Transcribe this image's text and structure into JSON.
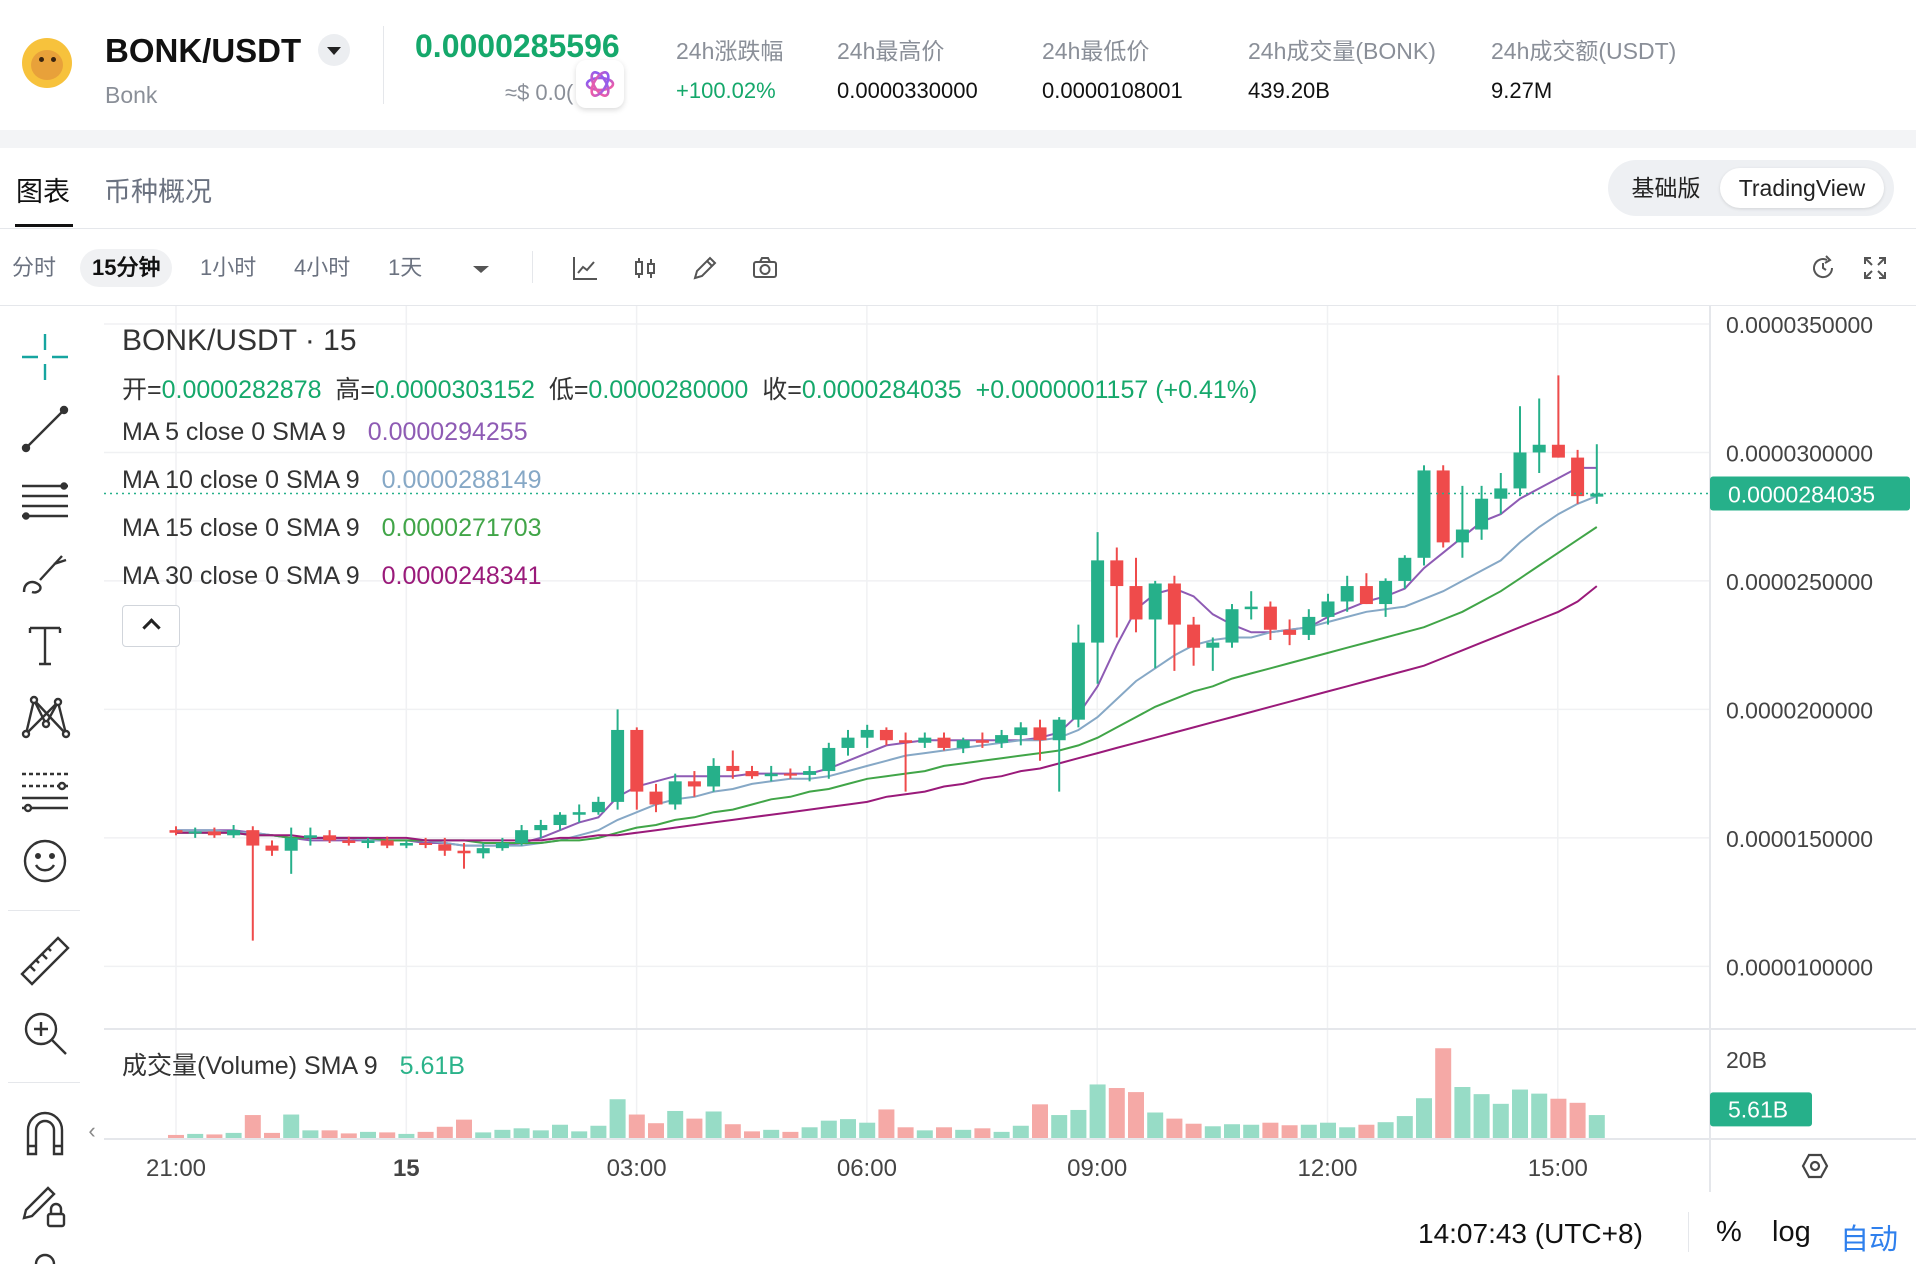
{
  "header": {
    "pair": "BONK/USDT",
    "pair_name": "Bonk",
    "last_price": "0.0000285596",
    "price_usd": "≈$ 0.0(",
    "stats": [
      {
        "label": "24h涨跌幅",
        "value": "+100.02%",
        "positive": true
      },
      {
        "label": "24h最高价",
        "value": "0.0000330000"
      },
      {
        "label": "24h最低价",
        "value": "0.0000108001"
      },
      {
        "label": "24h成交量(BONK)",
        "value": "439.20B"
      },
      {
        "label": "24h成交额(USDT)",
        "value": "9.27M"
      }
    ]
  },
  "tabs": {
    "chart": "图表",
    "overview": "币种概况",
    "mode_basic": "基础版",
    "mode_tv": "TradingView"
  },
  "toolbar": {
    "timeframes": [
      "分时",
      "15分钟",
      "1小时",
      "4小时",
      "1天"
    ],
    "selected": "15分钟"
  },
  "legend": {
    "title": "BONK/USDT · 15",
    "open_label": "开=",
    "open": "0.0000282878",
    "high_label": "高=",
    "high": "0.0000303152",
    "low_label": "低=",
    "low": "0.0000280000",
    "close_label": "收=",
    "close": "0.0000284035",
    "change": "+0.0000001157 (+0.41%)",
    "ma": [
      {
        "label": "MA 5 close 0 SMA 9",
        "value": "0.0000294255",
        "color": "#8e5bb4"
      },
      {
        "label": "MA 10 close 0 SMA 9",
        "value": "0.0000288149",
        "color": "#86a8c6"
      },
      {
        "label": "MA 15 close 0 SMA 9",
        "value": "0.0000271703",
        "color": "#41a548"
      },
      {
        "label": "MA 30 close 0 SMA 9",
        "value": "0.0000248341",
        "color": "#9a1a7a"
      }
    ],
    "volume_label": "成交量(Volume) SMA 9",
    "volume_value": "5.61B"
  },
  "footer": {
    "clock": "14:07:43 (UTC+8)",
    "percent": "%",
    "log": "log",
    "auto": "自动"
  },
  "colors": {
    "up": "#26b08a",
    "down": "#ef4b4b",
    "up_vol": "#97dcc6",
    "down_vol": "#f5a9a6",
    "accent": "#15a86b"
  },
  "chart_data": {
    "type": "candlestick",
    "y_axis_ticks": [
      "0.0000350000",
      "0.0000300000",
      "0.0000250000",
      "0.0000200000",
      "0.0000150000",
      "0.0000100000"
    ],
    "ylim": [
      7.6e-06,
      3.57e-05
    ],
    "x_ticks": [
      "21:00",
      "15",
      "03:00",
      "06:00",
      "09:00",
      "12:00",
      "15:00"
    ],
    "last_price_label": "0.0000284035",
    "last_price": 2.84035e-05,
    "volume_ticks": [
      "20B"
    ],
    "volume_sma_label": "5.61B",
    "volume_sma": 5.61,
    "volume_max": 20,
    "candles": [
      {
        "o": 15.3,
        "h": 15.45,
        "l": 15.1,
        "c": 15.2,
        "v": 0.6
      },
      {
        "o": 15.2,
        "h": 15.4,
        "l": 15.0,
        "c": 15.25,
        "v": 0.8
      },
      {
        "o": 15.25,
        "h": 15.4,
        "l": 15.0,
        "c": 15.1,
        "v": 0.7
      },
      {
        "o": 15.1,
        "h": 15.5,
        "l": 15.0,
        "c": 15.3,
        "v": 1.0
      },
      {
        "o": 15.3,
        "h": 15.45,
        "l": 11.0,
        "c": 14.7,
        "v": 4.5
      },
      {
        "o": 14.7,
        "h": 14.9,
        "l": 14.3,
        "c": 14.5,
        "v": 1.0
      },
      {
        "o": 14.5,
        "h": 15.4,
        "l": 13.6,
        "c": 15.0,
        "v": 4.6
      },
      {
        "o": 15.0,
        "h": 15.4,
        "l": 14.7,
        "c": 15.1,
        "v": 1.5
      },
      {
        "o": 15.1,
        "h": 15.3,
        "l": 14.8,
        "c": 14.9,
        "v": 1.5
      },
      {
        "o": 14.9,
        "h": 15.05,
        "l": 14.7,
        "c": 14.8,
        "v": 0.9
      },
      {
        "o": 14.8,
        "h": 15.0,
        "l": 14.6,
        "c": 14.9,
        "v": 1.2
      },
      {
        "o": 14.9,
        "h": 15.05,
        "l": 14.6,
        "c": 14.7,
        "v": 1.1
      },
      {
        "o": 14.7,
        "h": 14.9,
        "l": 14.6,
        "c": 14.8,
        "v": 0.8
      },
      {
        "o": 14.8,
        "h": 15.0,
        "l": 14.6,
        "c": 14.75,
        "v": 1.2
      },
      {
        "o": 14.75,
        "h": 15.0,
        "l": 14.3,
        "c": 14.5,
        "v": 2.2
      },
      {
        "o": 14.5,
        "h": 14.8,
        "l": 13.8,
        "c": 14.4,
        "v": 3.6
      },
      {
        "o": 14.4,
        "h": 14.8,
        "l": 14.2,
        "c": 14.6,
        "v": 1.1
      },
      {
        "o": 14.6,
        "h": 15.0,
        "l": 14.5,
        "c": 14.8,
        "v": 1.6
      },
      {
        "o": 14.8,
        "h": 15.5,
        "l": 14.7,
        "c": 15.3,
        "v": 1.9
      },
      {
        "o": 15.3,
        "h": 15.7,
        "l": 15.0,
        "c": 15.5,
        "v": 1.5
      },
      {
        "o": 15.5,
        "h": 16.0,
        "l": 15.3,
        "c": 15.9,
        "v": 2.6
      },
      {
        "o": 15.9,
        "h": 16.3,
        "l": 15.6,
        "c": 16.0,
        "v": 1.3
      },
      {
        "o": 16.0,
        "h": 16.6,
        "l": 15.9,
        "c": 16.4,
        "v": 2.4
      },
      {
        "o": 16.4,
        "h": 20.0,
        "l": 16.1,
        "c": 19.2,
        "v": 7.6
      },
      {
        "o": 19.2,
        "h": 19.3,
        "l": 16.1,
        "c": 16.8,
        "v": 4.6
      },
      {
        "o": 16.8,
        "h": 17.1,
        "l": 16.0,
        "c": 16.3,
        "v": 2.9
      },
      {
        "o": 16.3,
        "h": 17.5,
        "l": 16.1,
        "c": 17.2,
        "v": 5.3
      },
      {
        "o": 17.2,
        "h": 17.6,
        "l": 16.6,
        "c": 17.0,
        "v": 3.8
      },
      {
        "o": 17.0,
        "h": 18.1,
        "l": 16.8,
        "c": 17.8,
        "v": 5.2
      },
      {
        "o": 17.8,
        "h": 18.4,
        "l": 17.3,
        "c": 17.6,
        "v": 2.7
      },
      {
        "o": 17.6,
        "h": 17.8,
        "l": 17.3,
        "c": 17.4,
        "v": 1.3
      },
      {
        "o": 17.4,
        "h": 17.8,
        "l": 17.2,
        "c": 17.5,
        "v": 1.6
      },
      {
        "o": 17.5,
        "h": 17.7,
        "l": 17.3,
        "c": 17.45,
        "v": 1.2
      },
      {
        "o": 17.45,
        "h": 17.8,
        "l": 17.2,
        "c": 17.6,
        "v": 2.1
      },
      {
        "o": 17.6,
        "h": 18.7,
        "l": 17.3,
        "c": 18.5,
        "v": 3.4
      },
      {
        "o": 18.5,
        "h": 19.2,
        "l": 18.2,
        "c": 18.9,
        "v": 3.7
      },
      {
        "o": 18.9,
        "h": 19.4,
        "l": 18.5,
        "c": 19.2,
        "v": 3.0
      },
      {
        "o": 19.2,
        "h": 19.3,
        "l": 18.6,
        "c": 18.8,
        "v": 5.6
      },
      {
        "o": 18.8,
        "h": 19.1,
        "l": 16.8,
        "c": 18.7,
        "v": 2.1
      },
      {
        "o": 18.7,
        "h": 19.1,
        "l": 18.5,
        "c": 18.9,
        "v": 1.5
      },
      {
        "o": 18.9,
        "h": 19.1,
        "l": 18.4,
        "c": 18.5,
        "v": 2.1
      },
      {
        "o": 18.5,
        "h": 18.9,
        "l": 18.3,
        "c": 18.8,
        "v": 1.6
      },
      {
        "o": 18.8,
        "h": 19.1,
        "l": 18.5,
        "c": 18.7,
        "v": 1.9
      },
      {
        "o": 18.7,
        "h": 19.2,
        "l": 18.5,
        "c": 19.0,
        "v": 1.2
      },
      {
        "o": 19.0,
        "h": 19.5,
        "l": 18.6,
        "c": 19.3,
        "v": 2.4
      },
      {
        "o": 19.3,
        "h": 19.6,
        "l": 18.0,
        "c": 18.8,
        "v": 6.6
      },
      {
        "o": 18.8,
        "h": 19.7,
        "l": 16.8,
        "c": 19.6,
        "v": 4.5
      },
      {
        "o": 19.6,
        "h": 23.3,
        "l": 19.3,
        "c": 22.6,
        "v": 5.5
      },
      {
        "o": 22.6,
        "h": 26.9,
        "l": 21.0,
        "c": 25.8,
        "v": 10.5
      },
      {
        "o": 25.8,
        "h": 26.3,
        "l": 22.8,
        "c": 24.8,
        "v": 9.8
      },
      {
        "o": 24.8,
        "h": 25.9,
        "l": 23.0,
        "c": 23.5,
        "v": 9.0
      },
      {
        "o": 23.5,
        "h": 25.0,
        "l": 21.6,
        "c": 24.9,
        "v": 5.0
      },
      {
        "o": 24.9,
        "h": 25.2,
        "l": 21.5,
        "c": 23.3,
        "v": 3.8
      },
      {
        "o": 23.3,
        "h": 23.6,
        "l": 21.7,
        "c": 22.4,
        "v": 2.8
      },
      {
        "o": 22.4,
        "h": 22.8,
        "l": 21.5,
        "c": 22.6,
        "v": 2.3
      },
      {
        "o": 22.6,
        "h": 24.1,
        "l": 22.4,
        "c": 23.9,
        "v": 2.7
      },
      {
        "o": 23.9,
        "h": 24.6,
        "l": 23.5,
        "c": 24.0,
        "v": 2.6
      },
      {
        "o": 24.0,
        "h": 24.2,
        "l": 22.7,
        "c": 23.1,
        "v": 3.0
      },
      {
        "o": 23.1,
        "h": 23.5,
        "l": 22.5,
        "c": 22.9,
        "v": 2.5
      },
      {
        "o": 22.9,
        "h": 23.9,
        "l": 22.7,
        "c": 23.6,
        "v": 2.6
      },
      {
        "o": 23.6,
        "h": 24.5,
        "l": 23.3,
        "c": 24.2,
        "v": 3.0
      },
      {
        "o": 24.2,
        "h": 25.2,
        "l": 23.8,
        "c": 24.8,
        "v": 2.1
      },
      {
        "o": 24.8,
        "h": 25.3,
        "l": 24.1,
        "c": 24.1,
        "v": 2.6
      },
      {
        "o": 24.1,
        "h": 25.1,
        "l": 23.6,
        "c": 25.0,
        "v": 3.1
      },
      {
        "o": 25.0,
        "h": 26.0,
        "l": 24.7,
        "c": 25.9,
        "v": 4.3
      },
      {
        "o": 25.9,
        "h": 29.5,
        "l": 25.6,
        "c": 29.3,
        "v": 7.8
      },
      {
        "o": 29.3,
        "h": 29.5,
        "l": 26.3,
        "c": 26.5,
        "v": 17.6
      },
      {
        "o": 26.5,
        "h": 28.7,
        "l": 25.9,
        "c": 27.0,
        "v": 10.0
      },
      {
        "o": 27.0,
        "h": 28.7,
        "l": 26.6,
        "c": 28.2,
        "v": 8.6
      },
      {
        "o": 28.2,
        "h": 29.2,
        "l": 27.6,
        "c": 28.6,
        "v": 6.7
      },
      {
        "o": 28.6,
        "h": 31.8,
        "l": 28.3,
        "c": 30.0,
        "v": 9.5
      },
      {
        "o": 30.0,
        "h": 32.1,
        "l": 29.2,
        "c": 30.3,
        "v": 8.7
      },
      {
        "o": 30.3,
        "h": 33.0,
        "l": 29.8,
        "c": 29.8,
        "v": 7.7
      },
      {
        "o": 29.8,
        "h": 30.1,
        "l": 28.0,
        "c": 28.3,
        "v": 6.9
      },
      {
        "o": 28.28,
        "h": 30.32,
        "l": 28.0,
        "c": 28.4,
        "v": 4.5
      }
    ],
    "ma_lines": [
      {
        "name": "MA 5",
        "color": "#8e5bb4",
        "values": [
          15.3,
          15.3,
          15.3,
          15.3,
          15.2,
          15.1,
          15.0,
          14.9,
          14.9,
          14.9,
          14.9,
          14.9,
          14.9,
          14.8,
          14.8,
          14.7,
          14.7,
          14.7,
          14.8,
          15.0,
          15.3,
          15.6,
          15.8,
          16.6,
          17.0,
          17.2,
          17.4,
          17.4,
          17.4,
          17.4,
          17.5,
          17.5,
          17.5,
          17.5,
          17.7,
          18.0,
          18.3,
          18.6,
          18.7,
          18.8,
          18.8,
          18.8,
          18.8,
          18.8,
          18.8,
          18.9,
          19.1,
          19.8,
          20.9,
          22.5,
          23.9,
          24.5,
          24.7,
          24.4,
          23.7,
          23.3,
          23.0,
          23.0,
          23.1,
          23.2,
          23.6,
          23.9,
          24.2,
          24.4,
          24.7,
          25.5,
          26.1,
          26.7,
          27.3,
          27.6,
          28.2,
          28.6,
          29.0,
          29.4,
          29.4
        ]
      },
      {
        "name": "MA 10",
        "color": "#86a8c6",
        "values": [
          15.3,
          15.3,
          15.3,
          15.2,
          15.2,
          15.1,
          15.0,
          15.0,
          15.0,
          15.0,
          14.9,
          14.9,
          14.9,
          14.9,
          14.8,
          14.7,
          14.7,
          14.7,
          14.7,
          14.8,
          14.9,
          15.1,
          15.3,
          15.7,
          16.0,
          16.3,
          16.5,
          16.6,
          16.8,
          16.9,
          17.1,
          17.2,
          17.3,
          17.3,
          17.4,
          17.6,
          17.8,
          18.0,
          18.2,
          18.3,
          18.4,
          18.5,
          18.6,
          18.7,
          18.8,
          18.8,
          18.9,
          19.2,
          19.7,
          20.4,
          21.1,
          21.6,
          22.1,
          22.5,
          22.7,
          22.8,
          22.8,
          23.0,
          23.1,
          23.2,
          23.4,
          23.6,
          23.8,
          23.9,
          24.0,
          24.3,
          24.6,
          25.0,
          25.4,
          25.8,
          26.5,
          27.1,
          27.6,
          28.0,
          28.3
        ]
      },
      {
        "name": "MA 15",
        "color": "#41a548",
        "values": [
          15.2,
          15.2,
          15.2,
          15.2,
          15.1,
          15.1,
          15.0,
          15.0,
          15.0,
          15.0,
          15.0,
          14.9,
          14.9,
          14.9,
          14.9,
          14.9,
          14.8,
          14.8,
          14.8,
          14.8,
          14.9,
          14.9,
          15.0,
          15.2,
          15.4,
          15.5,
          15.7,
          15.8,
          16.0,
          16.1,
          16.3,
          16.5,
          16.6,
          16.8,
          16.9,
          17.1,
          17.3,
          17.4,
          17.5,
          17.6,
          17.8,
          17.9,
          18.0,
          18.1,
          18.2,
          18.3,
          18.4,
          18.6,
          18.9,
          19.3,
          19.7,
          20.1,
          20.4,
          20.7,
          20.9,
          21.2,
          21.4,
          21.6,
          21.8,
          22.0,
          22.2,
          22.4,
          22.6,
          22.8,
          23.0,
          23.2,
          23.5,
          23.8,
          24.2,
          24.6,
          25.1,
          25.6,
          26.1,
          26.6,
          27.1
        ]
      },
      {
        "name": "MA 30",
        "color": "#9a1a7a",
        "values": [
          15.2,
          15.2,
          15.2,
          15.2,
          15.1,
          15.1,
          15.1,
          15.0,
          15.0,
          15.0,
          15.0,
          15.0,
          15.0,
          14.9,
          14.9,
          14.9,
          14.9,
          14.9,
          14.9,
          14.9,
          15.0,
          15.0,
          15.1,
          15.1,
          15.2,
          15.3,
          15.4,
          15.5,
          15.6,
          15.7,
          15.8,
          15.9,
          16.0,
          16.1,
          16.2,
          16.3,
          16.4,
          16.6,
          16.7,
          16.8,
          17.0,
          17.1,
          17.3,
          17.4,
          17.6,
          17.7,
          17.9,
          18.1,
          18.3,
          18.5,
          18.7,
          18.9,
          19.1,
          19.3,
          19.5,
          19.7,
          19.9,
          20.1,
          20.3,
          20.5,
          20.7,
          20.9,
          21.1,
          21.3,
          21.5,
          21.7,
          22.0,
          22.3,
          22.6,
          22.9,
          23.2,
          23.5,
          23.8,
          24.2,
          24.8
        ]
      }
    ]
  }
}
